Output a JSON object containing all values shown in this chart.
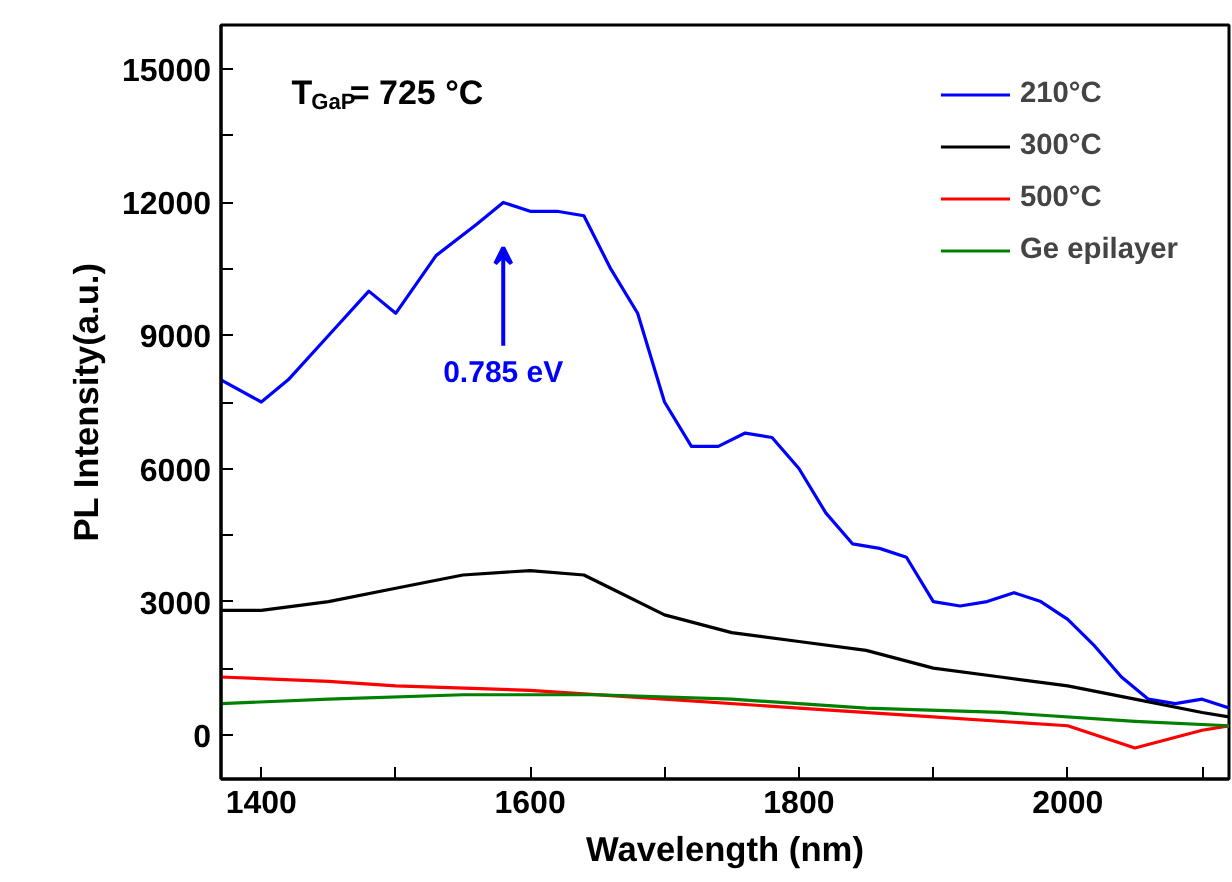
{
  "chart_data": {
    "type": "line",
    "xlabel": "Wavelength (nm)",
    "ylabel": "PL Intensity(a.u.)",
    "xlim": [
      1370,
      2120
    ],
    "ylim": [
      -1000,
      16000
    ],
    "xticks": [
      1400,
      {
        "value": 1500,
        "label": null
      },
      1600,
      {
        "value": 1700,
        "label": null
      },
      1800,
      {
        "value": 1900,
        "label": null
      },
      2000,
      {
        "value": 2100,
        "label": null
      }
    ],
    "yticks": [
      0,
      {
        "value": 1500,
        "label": null
      },
      3000,
      {
        "value": 4500,
        "label": null
      },
      6000,
      {
        "value": 7500,
        "label": null
      },
      9000,
      {
        "value": 10500,
        "label": null
      },
      12000,
      {
        "value": 13500,
        "label": null
      },
      15000
    ],
    "grid": false,
    "legend": "top right",
    "line_style": "solid",
    "marker": "none",
    "annotations": [
      "T$_{GaP}$= 725 °C",
      "0.785 eV"
    ],
    "series": [
      {
        "name": "210°C",
        "color": "#0000ff",
        "x": [
          1370,
          1400,
          1420,
          1450,
          1480,
          1500,
          1530,
          1560,
          1580,
          1600,
          1620,
          1640,
          1660,
          1680,
          1700,
          1720,
          1740,
          1760,
          1780,
          1800,
          1820,
          1840,
          1860,
          1880,
          1900,
          1920,
          1940,
          1960,
          1980,
          2000,
          2020,
          2040,
          2060,
          2080,
          2100,
          2120
        ],
        "values": [
          8000,
          7500,
          8000,
          9000,
          10000,
          9500,
          10800,
          11500,
          12000,
          11800,
          11800,
          11700,
          10500,
          9500,
          7500,
          6500,
          6500,
          6800,
          6700,
          6000,
          5000,
          4300,
          4200,
          4000,
          3000,
          2900,
          3000,
          3200,
          3000,
          2600,
          2000,
          1300,
          800,
          700,
          800,
          600
        ]
      },
      {
        "name": "300°C",
        "color": "#000000",
        "x": [
          1370,
          1400,
          1450,
          1500,
          1550,
          1600,
          1640,
          1660,
          1700,
          1750,
          1800,
          1850,
          1900,
          1950,
          2000,
          2050,
          2100,
          2120
        ],
        "values": [
          2800,
          2800,
          3000,
          3300,
          3600,
          3700,
          3600,
          3300,
          2700,
          2300,
          2100,
          1900,
          1500,
          1300,
          1100,
          800,
          500,
          400
        ]
      },
      {
        "name": "500°C",
        "color": "#ff0000",
        "x": [
          1370,
          1450,
          1500,
          1600,
          1700,
          1800,
          1900,
          2000,
          2050,
          2100,
          2120
        ],
        "values": [
          1300,
          1200,
          1100,
          1000,
          800,
          600,
          400,
          200,
          -300,
          100,
          200
        ]
      },
      {
        "name": "Ge epilayer",
        "color": "#008000",
        "x": [
          1370,
          1450,
          1550,
          1650,
          1750,
          1850,
          1950,
          2050,
          2120
        ],
        "values": [
          700,
          800,
          900,
          900,
          800,
          600,
          500,
          300,
          200
        ]
      }
    ]
  }
}
